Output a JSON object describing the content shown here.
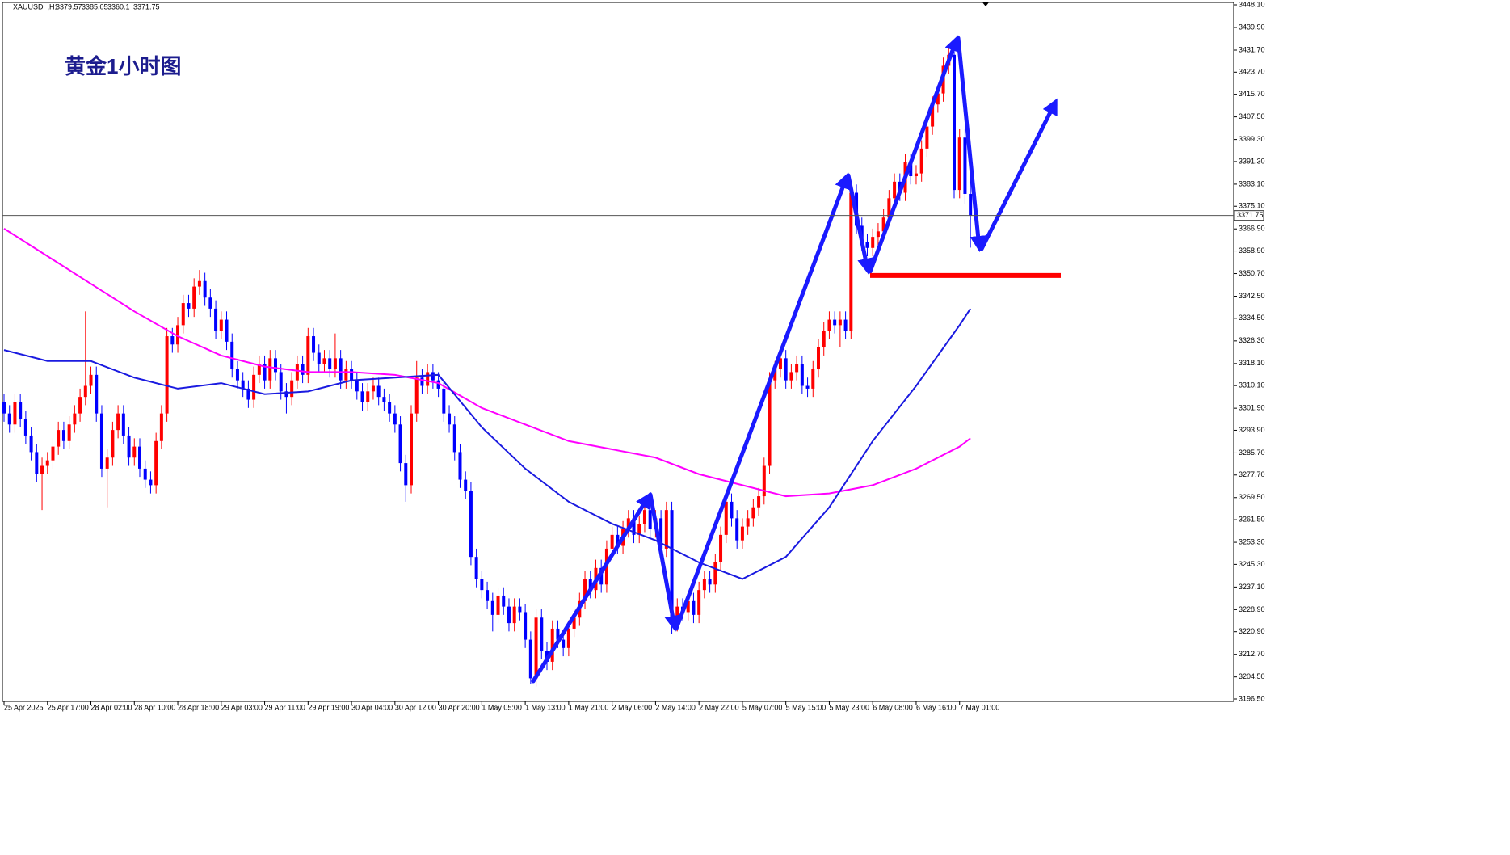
{
  "chart_data": {
    "type": "candlestick",
    "symbol": "XAUUSD_,H1",
    "title": "黄金1小时图",
    "up_color": "#ff0000",
    "down_color": "#0000ff",
    "ylim": [
      3196.5,
      3448.1
    ],
    "yticks": [
      {
        "value": 3448.1,
        "label": "3448.10"
      },
      {
        "value": 3439.9,
        "label": "3439.90"
      },
      {
        "value": 3431.7,
        "label": "3431.70"
      },
      {
        "value": 3423.7,
        "label": "3423.70"
      },
      {
        "value": 3415.7,
        "label": "3415.70"
      },
      {
        "value": 3407.5,
        "label": "3407.50"
      },
      {
        "value": 3399.3,
        "label": "3399.30"
      },
      {
        "value": 3391.3,
        "label": "3391.30"
      },
      {
        "value": 3383.1,
        "label": "3383.10"
      },
      {
        "value": 3375.1,
        "label": "3375.10"
      },
      {
        "value": 3366.9,
        "label": "3366.90"
      },
      {
        "value": 3358.9,
        "label": "3358.90"
      },
      {
        "value": 3350.7,
        "label": "3350.70"
      },
      {
        "value": 3342.5,
        "label": "3342.50"
      },
      {
        "value": 3334.5,
        "label": "3334.50"
      },
      {
        "value": 3326.3,
        "label": "3326.30"
      },
      {
        "value": 3318.1,
        "label": "3318.10"
      },
      {
        "value": 3310.1,
        "label": "3310.10"
      },
      {
        "value": 3301.9,
        "label": "3301.90"
      },
      {
        "value": 3293.9,
        "label": "3293.90"
      },
      {
        "value": 3285.7,
        "label": "3285.70"
      },
      {
        "value": 3277.7,
        "label": "3277.70"
      },
      {
        "value": 3269.5,
        "label": "3269.50"
      },
      {
        "value": 3261.5,
        "label": "3261.50"
      },
      {
        "value": 3253.3,
        "label": "3253.30"
      },
      {
        "value": 3245.3,
        "label": "3245.30"
      },
      {
        "value": 3237.1,
        "label": "3237.10"
      },
      {
        "value": 3228.9,
        "label": "3228.90"
      },
      {
        "value": 3220.9,
        "label": "3220.90"
      },
      {
        "value": 3212.7,
        "label": "3212.70"
      },
      {
        "value": 3204.5,
        "label": "3204.50"
      },
      {
        "value": 3196.5,
        "label": "3196.50"
      }
    ],
    "xticks": [
      {
        "value": 0,
        "label": "25 Apr 2025"
      },
      {
        "value": 8,
        "label": "25 Apr 17:00"
      },
      {
        "value": 16,
        "label": "28 Apr 02:00"
      },
      {
        "value": 24,
        "label": "28 Apr 10:00"
      },
      {
        "value": 32,
        "label": "28 Apr 18:00"
      },
      {
        "value": 40,
        "label": "29 Apr 03:00"
      },
      {
        "value": 48,
        "label": "29 Apr 11:00"
      },
      {
        "value": 56,
        "label": "29 Apr 19:00"
      },
      {
        "value": 64,
        "label": "30 Apr 04:00"
      },
      {
        "value": 72,
        "label": "30 Apr 12:00"
      },
      {
        "value": 80,
        "label": "30 Apr 20:00"
      },
      {
        "value": 88,
        "label": "1 May 05:00"
      },
      {
        "value": 96,
        "label": "1 May 13:00"
      },
      {
        "value": 104,
        "label": "1 May 21:00"
      },
      {
        "value": 112,
        "label": "2 May 06:00"
      },
      {
        "value": 120,
        "label": "2 May 14:00"
      },
      {
        "value": 128,
        "label": "2 May 22:00"
      },
      {
        "value": 136,
        "label": "5 May 07:00"
      },
      {
        "value": 144,
        "label": "5 May 15:00"
      },
      {
        "value": 152,
        "label": "5 May 23:00"
      },
      {
        "value": 160,
        "label": "6 May 08:00"
      },
      {
        "value": 168,
        "label": "6 May 16:00"
      },
      {
        "value": 176,
        "label": "7 May 01:00"
      }
    ],
    "open": [
      3304,
      3300,
      3296,
      3304,
      3298,
      3292,
      3286,
      3278,
      3281,
      3283,
      3288,
      3294,
      3290,
      3296,
      3300,
      3306,
      3310,
      3314,
      3300,
      3280,
      3284,
      3294,
      3300,
      3292,
      3284,
      3288,
      3280,
      3276,
      3274,
      3290,
      3300,
      3328,
      3325,
      3332,
      3340,
      3338,
      3346,
      3348,
      3342,
      3338,
      3330,
      3334,
      3326,
      3316,
      3312,
      3309,
      3305,
      3314,
      3318,
      3312,
      3320,
      3315,
      3308,
      3306,
      3312,
      3318,
      3314,
      3328,
      3322,
      3318,
      3320,
      3316,
      3320,
      3312,
      3316,
      3312,
      3308,
      3304,
      3308,
      3310,
      3306,
      3304,
      3300,
      3296,
      3282,
      3274,
      3300,
      3313,
      3310,
      3315,
      3312,
      3309,
      3300,
      3296,
      3286,
      3276,
      3272,
      3248,
      3240,
      3236,
      3232,
      3227,
      3234,
      3230,
      3224,
      3230,
      3228,
      3218,
      3204,
      3226,
      3214,
      3210,
      3222,
      3218,
      3215,
      3222,
      3226,
      3232,
      3240,
      3236,
      3244,
      3238,
      3251,
      3256,
      3252,
      3258,
      3262,
      3256,
      3260,
      3265,
      3258,
      3262,
      3251,
      3265,
      3224,
      3230,
      3228,
      3232,
      3227,
      3236,
      3240,
      3238,
      3246,
      3256,
      3268,
      3262,
      3254,
      3259,
      3262,
      3266,
      3270,
      3281,
      3312,
      3316,
      3320,
      3312,
      3315,
      3318,
      3310,
      3309,
      3316,
      3324,
      3330,
      3334,
      3332,
      3334,
      3330,
      3380,
      3368,
      3362,
      3360,
      3364,
      3366,
      3371,
      3378,
      3384,
      3380,
      3391,
      3386,
      3387,
      3396,
      3404,
      3412,
      3416,
      3426,
      3430,
      3381,
      3400,
      3379.57
    ],
    "high": [
      3307,
      3303,
      3307,
      3307,
      3301,
      3295,
      3289,
      3284,
      3286,
      3291,
      3297,
      3297,
      3299,
      3303,
      3309,
      3337,
      3317,
      3317,
      3303,
      3287,
      3297,
      3303,
      3303,
      3295,
      3291,
      3291,
      3283,
      3279,
      3293,
      3303,
      3331,
      3331,
      3335,
      3343,
      3343,
      3349,
      3352,
      3351,
      3345,
      3341,
      3337,
      3337,
      3329,
      3319,
      3315,
      3312,
      3317,
      3321,
      3321,
      3323,
      3323,
      3318,
      3311,
      3315,
      3321,
      3321,
      3331,
      3331,
      3325,
      3323,
      3323,
      3329,
      3323,
      3319,
      3319,
      3315,
      3311,
      3311,
      3313,
      3313,
      3309,
      3307,
      3303,
      3299,
      3285,
      3303,
      3319,
      3316,
      3318,
      3318,
      3315,
      3312,
      3303,
      3299,
      3289,
      3279,
      3275,
      3251,
      3243,
      3239,
      3235,
      3237,
      3237,
      3233,
      3233,
      3233,
      3231,
      3221,
      3229,
      3229,
      3217,
      3225,
      3225,
      3221,
      3225,
      3229,
      3235,
      3243,
      3243,
      3247,
      3247,
      3254,
      3259,
      3259,
      3261,
      3265,
      3265,
      3263,
      3268,
      3268,
      3265,
      3265,
      3268,
      3268,
      3233,
      3233,
      3235,
      3235,
      3239,
      3243,
      3243,
      3249,
      3259,
      3271,
      3271,
      3265,
      3262,
      3265,
      3269,
      3273,
      3284,
      3315,
      3319,
      3323,
      3323,
      3318,
      3321,
      3321,
      3313,
      3319,
      3327,
      3333,
      3337,
      3337,
      3337,
      3337,
      3383,
      3383,
      3371,
      3365,
      3367,
      3369,
      3374,
      3381,
      3387,
      3387,
      3394,
      3394,
      3390,
      3399,
      3407,
      3415,
      3419,
      3429,
      3433,
      3433,
      3403,
      3403,
      3385.05
    ],
    "low": [
      3297,
      3293,
      3293,
      3295,
      3289,
      3283,
      3275,
      3265,
      3278,
      3280,
      3285,
      3287,
      3287,
      3293,
      3297,
      3303,
      3307,
      3297,
      3277,
      3266,
      3281,
      3291,
      3289,
      3281,
      3281,
      3277,
      3273,
      3271,
      3271,
      3287,
      3297,
      3322,
      3322,
      3329,
      3335,
      3335,
      3343,
      3339,
      3335,
      3327,
      3327,
      3323,
      3313,
      3309,
      3306,
      3302,
      3302,
      3311,
      3309,
      3309,
      3312,
      3305,
      3300,
      3303,
      3309,
      3311,
      3311,
      3319,
      3315,
      3315,
      3313,
      3313,
      3309,
      3309,
      3309,
      3305,
      3301,
      3301,
      3305,
      3303,
      3301,
      3297,
      3293,
      3279,
      3268,
      3271,
      3297,
      3307,
      3307,
      3309,
      3306,
      3297,
      3293,
      3283,
      3273,
      3269,
      3245,
      3237,
      3233,
      3229,
      3221,
      3224,
      3227,
      3221,
      3221,
      3225,
      3215,
      3202,
      3201,
      3211,
      3207,
      3207,
      3215,
      3212,
      3212,
      3219,
      3223,
      3229,
      3233,
      3233,
      3235,
      3235,
      3248,
      3249,
      3249,
      3255,
      3253,
      3253,
      3257,
      3255,
      3255,
      3248,
      3248,
      3220,
      3221,
      3225,
      3225,
      3224,
      3224,
      3233,
      3235,
      3235,
      3243,
      3253,
      3259,
      3251,
      3251,
      3256,
      3259,
      3263,
      3267,
      3278,
      3309,
      3313,
      3309,
      3309,
      3312,
      3307,
      3306,
      3306,
      3313,
      3321,
      3327,
      3329,
      3324,
      3327,
      3327,
      3365,
      3359,
      3357,
      3357,
      3361,
      3363,
      3368,
      3375,
      3377,
      3377,
      3383,
      3383,
      3384,
      3393,
      3401,
      3409,
      3413,
      3423,
      3378,
      3378,
      3376,
      3360.1
    ],
    "close": [
      3300,
      3296,
      3304,
      3298,
      3292,
      3286,
      3278,
      3281,
      3283,
      3288,
      3294,
      3290,
      3296,
      3300,
      3306,
      3310,
      3314,
      3300,
      3280,
      3284,
      3294,
      3300,
      3292,
      3284,
      3288,
      3280,
      3276,
      3274,
      3290,
      3300,
      3328,
      3325,
      3332,
      3340,
      3338,
      3346,
      3348,
      3342,
      3338,
      3330,
      3334,
      3326,
      3316,
      3312,
      3309,
      3305,
      3314,
      3318,
      3312,
      3320,
      3315,
      3308,
      3306,
      3312,
      3318,
      3314,
      3328,
      3322,
      3318,
      3320,
      3316,
      3320,
      3312,
      3316,
      3312,
      3308,
      3304,
      3308,
      3310,
      3306,
      3304,
      3300,
      3296,
      3282,
      3274,
      3300,
      3313,
      3310,
      3315,
      3312,
      3309,
      3300,
      3296,
      3286,
      3276,
      3272,
      3248,
      3240,
      3236,
      3232,
      3227,
      3234,
      3230,
      3224,
      3230,
      3228,
      3218,
      3204,
      3226,
      3214,
      3210,
      3222,
      3218,
      3215,
      3222,
      3226,
      3232,
      3240,
      3236,
      3244,
      3238,
      3251,
      3256,
      3252,
      3258,
      3262,
      3256,
      3260,
      3265,
      3258,
      3262,
      3251,
      3265,
      3224,
      3230,
      3228,
      3232,
      3227,
      3236,
      3240,
      3238,
      3246,
      3256,
      3268,
      3262,
      3254,
      3259,
      3262,
      3266,
      3270,
      3281,
      3312,
      3316,
      3320,
      3312,
      3315,
      3318,
      3310,
      3309,
      3316,
      3324,
      3330,
      3334,
      3332,
      3334,
      3330,
      3380,
      3368,
      3362,
      3360,
      3364,
      3366,
      3371,
      3378,
      3384,
      3380,
      3391,
      3386,
      3387,
      3396,
      3404,
      3412,
      3416,
      3426,
      3430,
      3381,
      3400,
      3379.57,
      3371.75
    ],
    "ma_x": [
      0,
      8,
      16,
      24,
      32,
      40,
      48,
      56,
      64,
      72,
      80,
      88,
      96,
      104,
      112,
      120,
      128,
      136,
      144,
      152,
      160,
      168,
      176,
      178
    ],
    "series": [
      {
        "color": "#ff00ff",
        "values": [
          3367,
          3357,
          3347,
          3337,
          3328,
          3321,
          3317,
          3315,
          3315,
          3314,
          3311,
          3302,
          3296,
          3290,
          3287,
          3284,
          3278,
          3274,
          3270,
          3271,
          3274,
          3280,
          3288,
          3291
        ]
      },
      {
        "color": "#1a1ae0",
        "values": [
          3323,
          3319,
          3319,
          3313,
          3309,
          3311,
          3307,
          3308,
          3312,
          3313,
          3314,
          3295,
          3280,
          3268,
          3260,
          3254,
          3246,
          3240,
          3248,
          3266,
          3290,
          3310,
          3332,
          3338
        ]
      }
    ],
    "level_line": {
      "value": 3350,
      "color": "#ff0000"
    }
  }
}
